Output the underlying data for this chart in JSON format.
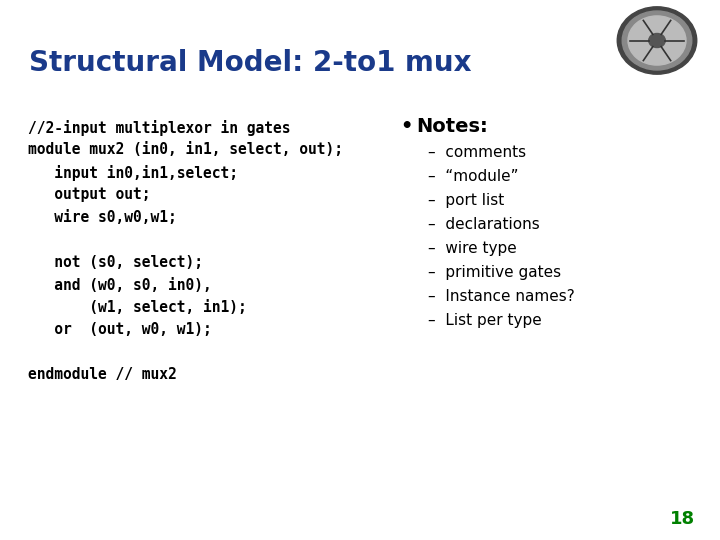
{
  "title": "Structural Model: 2-to1 mux",
  "title_color": "#1a3a8a",
  "title_fontsize": 20,
  "bg_color": "#ffffff",
  "separator_color": "#e8a800",
  "code_lines": [
    "//2-input multiplexor in gates",
    "module mux2 (in0, in1, select, out);",
    "   input in0,in1,select;",
    "   output out;",
    "   wire s0,w0,w1;",
    "",
    "   not (s0, select);",
    "   and (w0, s0, in0),",
    "       (w1, select, in1);",
    "   or  (out, w0, w1);",
    "",
    "endmodule // mux2"
  ],
  "notes_title": "Notes:",
  "notes_items": [
    "comments",
    "“module”",
    "port list",
    "declarations",
    "wire type",
    "primitive gates",
    "Instance names?",
    "List per type"
  ],
  "page_number": "18",
  "page_number_color": "#008000",
  "code_fontsize": 10.5,
  "notes_title_fontsize": 14,
  "notes_item_fontsize": 11
}
